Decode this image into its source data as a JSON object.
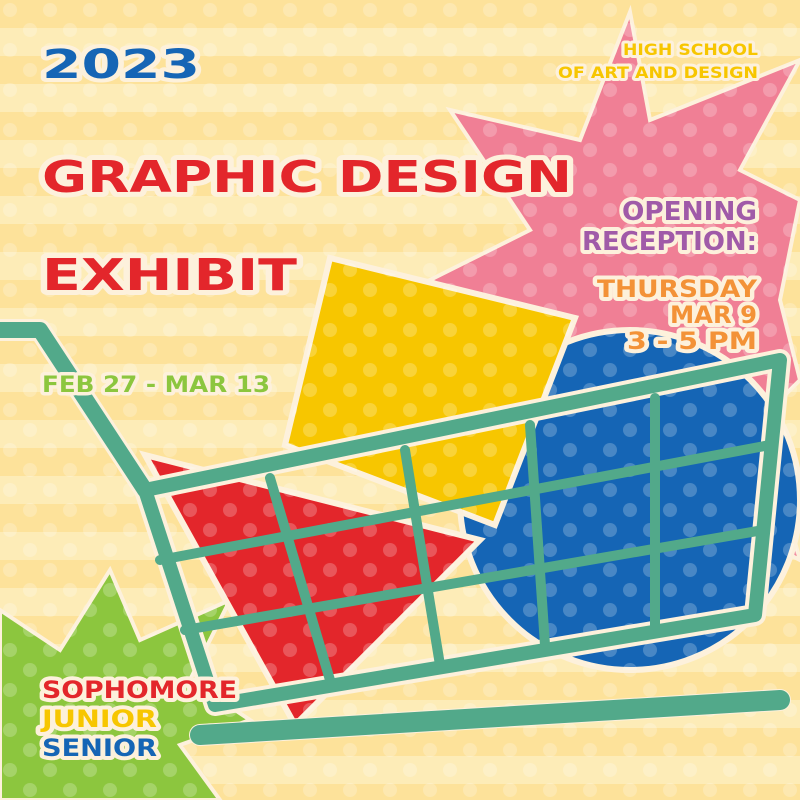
{
  "header": {
    "year": "2023",
    "title_line1": "GRAPHIC DESIGN",
    "title_line2": "EXHIBIT",
    "dates": "FEB 27 - MAR 13"
  },
  "school": {
    "line1": "HIGH SCHOOL",
    "line2": "OF ART AND DESIGN"
  },
  "reception": {
    "heading_line1": "OPENING",
    "heading_line2": "RECEPTION:",
    "day": "THURSDAY",
    "date": "MAR 9",
    "time": "3 - 5 PM"
  },
  "grades": [
    "SOPHOMORE",
    "JUNIOR",
    "SENIOR"
  ],
  "colors": {
    "background": "#fde7a3",
    "blue": "#1565b5",
    "red": "#e3262b",
    "green": "#8cc63e",
    "yellow": "#f7c600",
    "purple": "#a05aa8",
    "orange": "#f39237",
    "pink": "#f07f95",
    "cart": "#52a98a"
  }
}
